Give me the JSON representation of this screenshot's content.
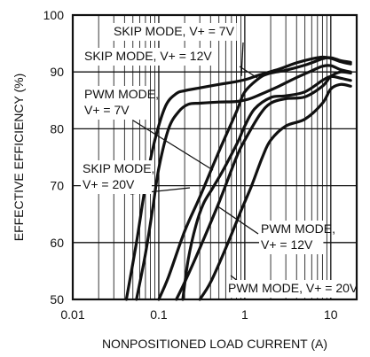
{
  "chart_data": {
    "type": "line",
    "x_scale": "log",
    "xlim": [
      0.01,
      20
    ],
    "ylim": [
      50,
      100
    ],
    "xlabel": "NONPOSITIONED LOAD CURRENT (A)",
    "ylabel": "EFFECTIVE EFFICIENCY (%)",
    "x_ticks": [
      0.01,
      0.1,
      1,
      10
    ],
    "x_tick_labels": [
      "0.01",
      "0.1",
      "1",
      "10"
    ],
    "y_ticks": [
      50,
      60,
      70,
      80,
      90,
      100
    ],
    "y_tick_labels": [
      "50",
      "60",
      "70",
      "80",
      "90",
      "100"
    ],
    "grid": true,
    "series": [
      {
        "name": "SKIP MODE, V+ = 7V",
        "x": [
          0.042,
          0.055,
          0.07,
          0.09,
          0.12,
          0.16,
          0.2,
          0.3,
          0.5,
          0.8,
          1.1,
          1.5,
          2.5,
          4,
          6,
          8,
          10,
          13,
          17
        ],
        "y": [
          50,
          60,
          70,
          78,
          84,
          86.2,
          86.7,
          87.2,
          87.8,
          88.3,
          88.8,
          89.5,
          90.5,
          91.6,
          92.3,
          92.6,
          92.4,
          91.8,
          91.4
        ]
      },
      {
        "name": "SKIP MODE, V+ = 12V",
        "x": [
          0.055,
          0.07,
          0.085,
          0.1,
          0.13,
          0.17,
          0.22,
          0.3,
          0.5,
          0.8,
          1.1,
          1.5,
          2.5,
          4,
          6,
          8,
          10,
          13,
          17
        ],
        "y": [
          50,
          58,
          66,
          73,
          80,
          83,
          84.3,
          84.5,
          84.7,
          84.8,
          85.2,
          86,
          87.5,
          89,
          90.2,
          91,
          91.1,
          90.4,
          90
        ]
      },
      {
        "name": "PWM MODE, V+ = 7V",
        "x": [
          0.1,
          0.13,
          0.2,
          0.3,
          0.5,
          0.8,
          1,
          1.5,
          2,
          3,
          5,
          8,
          10,
          13,
          17
        ],
        "y": [
          50,
          54,
          62,
          68,
          76,
          83,
          86.5,
          89,
          89.8,
          90.3,
          91.2,
          92.3,
          92.5,
          92,
          91.7
        ]
      },
      {
        "name": "SKIP MODE, V+ = 20V",
        "x": [
          0.19,
          0.22,
          0.27,
          0.33,
          0.42,
          0.55,
          0.7,
          0.85,
          1,
          1.3,
          2,
          3,
          5,
          8,
          10,
          13,
          17
        ],
        "y": [
          50,
          57,
          63,
          66.8,
          69.5,
          72.5,
          75.5,
          78,
          80.5,
          83.5,
          85.5,
          85.8,
          86.5,
          88.5,
          89.2,
          88.9,
          88.5
        ]
      },
      {
        "name": "PWM MODE, V+ = 12V",
        "x": [
          0.16,
          0.2,
          0.3,
          0.5,
          0.8,
          1,
          1.5,
          2,
          3,
          5,
          8,
          10,
          13,
          17
        ],
        "y": [
          50,
          53,
          59,
          67,
          75,
          78,
          82.5,
          84.5,
          85.3,
          85.6,
          87.5,
          89.2,
          90,
          89.8
        ]
      },
      {
        "name": "PWM MODE, V+ = 20V",
        "x": [
          0.3,
          0.4,
          0.6,
          0.9,
          1.2,
          1.6,
          2,
          3,
          5,
          8,
          10,
          13,
          17
        ],
        "y": [
          50,
          53,
          59,
          65.5,
          70,
          75,
          78,
          80.5,
          81.7,
          84.5,
          87,
          87.8,
          87.5
        ]
      }
    ],
    "annotations": [
      {
        "id": "anno-skip-7v",
        "lines": [
          "SKIP MODE, V+ = 7V"
        ]
      },
      {
        "id": "anno-skip-12v",
        "lines": [
          "SKIP MODE, V+ = 12V"
        ]
      },
      {
        "id": "anno-pwm-7v",
        "lines": [
          "PWM MODE,",
          "V+ = 7V"
        ]
      },
      {
        "id": "anno-skip-20v",
        "lines": [
          "SKIP MODE,",
          "V+ = 20V"
        ]
      },
      {
        "id": "anno-pwm-12v",
        "lines": [
          "PWM MODE,",
          "V+ = 12V"
        ]
      },
      {
        "id": "anno-pwm-20v",
        "lines": [
          "PWM MODE, V+ = 20V"
        ]
      }
    ]
  }
}
